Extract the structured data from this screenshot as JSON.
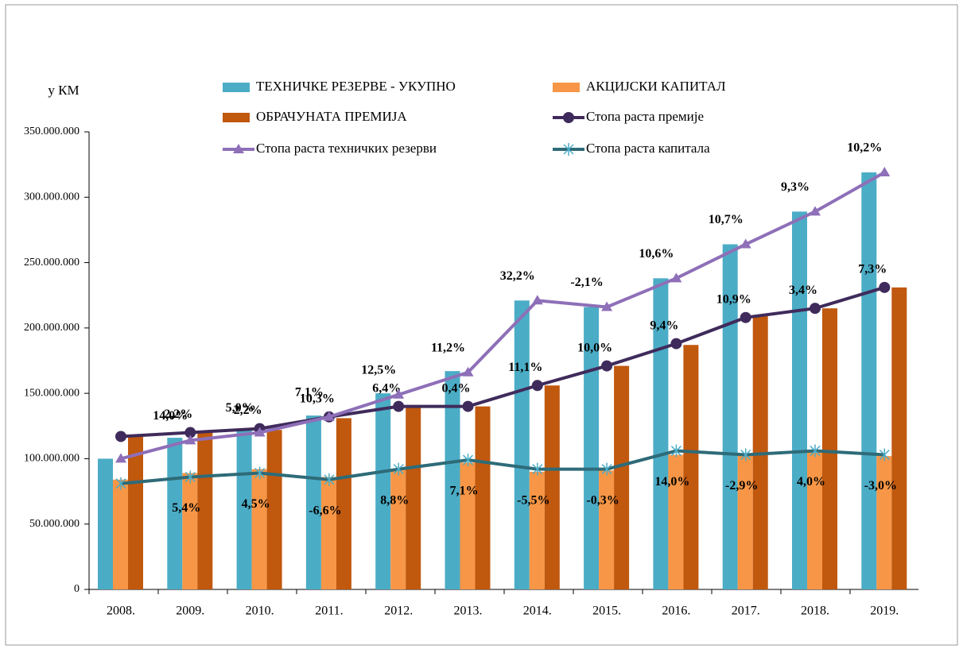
{
  "chart_data": {
    "type": "bar-line",
    "y_label": "у КМ",
    "categories": [
      "2008.",
      "2009.",
      "2010.",
      "2011.",
      "2012.",
      "2013.",
      "2014.",
      "2015.",
      "2016.",
      "2017.",
      "2018.",
      "2019."
    ],
    "ylim": [
      0,
      350000000
    ],
    "yticks": [
      0,
      {
        "value": 50000000,
        "label": "50.000.000"
      },
      {
        "value": 100000000,
        "label": "100.000.000"
      },
      {
        "value": 150000000,
        "label": "150.000.000"
      },
      {
        "value": 200000000,
        "label": "200.000.000"
      },
      {
        "value": 250000000,
        "label": "250.000.000"
      },
      {
        "value": 300000000,
        "label": "300.000.000"
      },
      {
        "value": 350000000,
        "label": "350.000.000"
      }
    ],
    "bar_series": [
      {
        "name": "ТЕХНИЧКЕ РЕЗЕРВЕ - УКУПНО",
        "color": "#4bacc6",
        "values": [
          100000000,
          116000000,
          122000000,
          133000000,
          150000000,
          167000000,
          221000000,
          216000000,
          238000000,
          264000000,
          289000000,
          319000000
        ]
      },
      {
        "name": "АКЦИЈСКИ КАПИТАЛ",
        "color": "#f79646",
        "values": [
          84000000,
          89000000,
          92000000,
          86000000,
          92000000,
          97000000,
          90000000,
          91000000,
          103000000,
          103000000,
          106000000,
          102000000
        ]
      },
      {
        "name": "ОБРАЧУНАТА ПРЕМИЈА",
        "color": "#c0580e",
        "values": [
          117000000,
          120000000,
          122000000,
          131000000,
          140000000,
          140000000,
          156000000,
          171000000,
          187000000,
          209000000,
          215000000,
          231000000
        ]
      }
    ],
    "line_series": [
      {
        "name": "Стопа раста премије",
        "color": "#3f2b5b",
        "marker": "circle",
        "values": [
          117000000,
          120000000,
          123000000,
          132000000,
          140000000,
          140000000,
          156000000,
          171000000,
          188000000,
          208000000,
          215000000,
          231000000
        ],
        "point_labels": [
          null,
          "2,2%",
          "2,2%",
          "10,3%",
          "6,4%",
          "0,4%",
          "11,1%",
          "10,0%",
          "9,4%",
          "10,9%",
          "3,4%",
          "7,3%"
        ]
      },
      {
        "name": "Стопа раста техничких  резерви",
        "color": "#8e6fb8",
        "marker": "triangle",
        "values": [
          100000000,
          114000000,
          120000000,
          132000000,
          149000000,
          166000000,
          221000000,
          216000000,
          238000000,
          264000000,
          289000000,
          319000000
        ],
        "point_labels": [
          null,
          "14,0%",
          "5,0%",
          "7,1%",
          "12,5%",
          "11,2%",
          "32,2%",
          "-2,1%",
          "10,6%",
          "10,7%",
          "9,3%",
          "10,2%"
        ]
      },
      {
        "name": "Стопа раста капитала",
        "color": "#2e6b78",
        "marker": "star",
        "values": [
          81000000,
          86000000,
          89000000,
          84000000,
          92000000,
          99000000,
          92000000,
          92000000,
          106000000,
          103000000,
          106000000,
          103000000
        ],
        "point_labels": [
          null,
          "5,4%",
          "4,5%",
          "-6,6%",
          "8,8%",
          "7,1%",
          "-5,5%",
          "-0,3%",
          "14,0%",
          "-2,9%",
          "4,0%",
          "-3,0%"
        ]
      }
    ]
  }
}
